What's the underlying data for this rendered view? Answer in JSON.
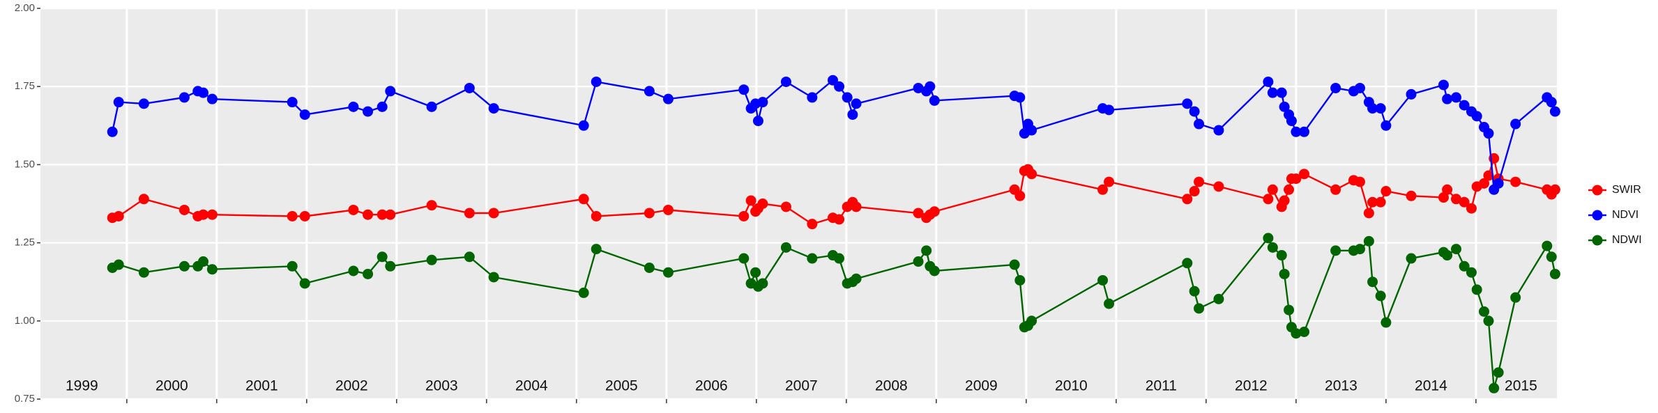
{
  "chart_data": {
    "type": "line",
    "x": [
      1999.84,
      1999.91,
      2000.19,
      2000.64,
      2000.79,
      2000.85,
      2000.95,
      2001.84,
      2001.98,
      2002.52,
      2002.68,
      2002.84,
      2002.93,
      2003.39,
      2003.81,
      2004.08,
      2005.08,
      2005.22,
      2005.81,
      2006.02,
      2006.86,
      2006.94,
      2006.99,
      2007.02,
      2007.07,
      2007.33,
      2007.62,
      2007.85,
      2007.92,
      2008.01,
      2008.07,
      2008.11,
      2008.8,
      2008.89,
      2008.93,
      2008.98,
      2009.87,
      2009.93,
      2009.98,
      2010.02,
      2010.06,
      2010.85,
      2010.92,
      2011.79,
      2011.87,
      2011.92,
      2012.14,
      2012.69,
      2012.74,
      2012.84,
      2012.87,
      2012.92,
      2012.95,
      2013.0,
      2013.09,
      2013.44,
      2013.64,
      2013.71,
      2013.81,
      2013.85,
      2013.94,
      2014.0,
      2014.28,
      2014.64,
      2014.68,
      2014.78,
      2014.87,
      2014.95,
      2015.01,
      2015.09,
      2015.14,
      2015.2,
      2015.25,
      2015.44,
      2015.79,
      2015.84,
      2015.88
    ],
    "series": [
      {
        "name": "SWIR",
        "color": "#ff0000",
        "values": [
          1.33,
          1.335,
          1.39,
          1.355,
          1.335,
          1.34,
          1.34,
          1.335,
          1.335,
          1.355,
          1.34,
          1.34,
          1.34,
          1.37,
          1.345,
          1.345,
          1.39,
          1.335,
          1.345,
          1.355,
          1.335,
          1.385,
          1.35,
          1.36,
          1.375,
          1.365,
          1.31,
          1.33,
          1.325,
          1.365,
          1.38,
          1.365,
          1.345,
          1.33,
          1.34,
          1.35,
          1.42,
          1.4,
          1.48,
          1.485,
          1.47,
          1.42,
          1.445,
          1.39,
          1.415,
          1.445,
          1.43,
          1.39,
          1.42,
          1.365,
          1.385,
          1.42,
          1.455,
          1.455,
          1.47,
          1.42,
          1.45,
          1.445,
          1.345,
          1.38,
          1.38,
          1.415,
          1.4,
          1.395,
          1.42,
          1.39,
          1.38,
          1.36,
          1.43,
          1.44,
          1.465,
          1.52,
          1.455,
          1.445,
          1.42,
          1.405,
          1.42
        ]
      },
      {
        "name": "NDVI",
        "color": "#0000ff",
        "values": [
          1.605,
          1.7,
          1.695,
          1.715,
          1.735,
          1.73,
          1.71,
          1.7,
          1.66,
          1.685,
          1.67,
          1.685,
          1.735,
          1.685,
          1.745,
          1.68,
          1.625,
          1.765,
          1.735,
          1.71,
          1.74,
          1.68,
          1.695,
          1.64,
          1.7,
          1.765,
          1.715,
          1.77,
          1.75,
          1.715,
          1.66,
          1.695,
          1.745,
          1.735,
          1.75,
          1.705,
          1.72,
          1.715,
          1.6,
          1.63,
          1.61,
          1.68,
          1.675,
          1.695,
          1.67,
          1.63,
          1.61,
          1.765,
          1.73,
          1.73,
          1.685,
          1.66,
          1.64,
          1.605,
          1.605,
          1.745,
          1.735,
          1.745,
          1.7,
          1.68,
          1.68,
          1.625,
          1.725,
          1.755,
          1.71,
          1.715,
          1.69,
          1.67,
          1.655,
          1.62,
          1.6,
          1.42,
          1.44,
          1.63,
          1.715,
          1.7,
          1.67
        ]
      },
      {
        "name": "NDWI",
        "color": "#006400",
        "values": [
          1.17,
          1.18,
          1.155,
          1.175,
          1.175,
          1.19,
          1.165,
          1.175,
          1.12,
          1.16,
          1.15,
          1.205,
          1.175,
          1.195,
          1.205,
          1.14,
          1.09,
          1.23,
          1.17,
          1.155,
          1.2,
          1.12,
          1.155,
          1.11,
          1.12,
          1.235,
          1.2,
          1.21,
          1.2,
          1.12,
          1.125,
          1.135,
          1.19,
          1.225,
          1.175,
          1.16,
          1.18,
          1.13,
          0.98,
          0.985,
          1.0,
          1.13,
          1.055,
          1.185,
          1.095,
          1.04,
          1.07,
          1.265,
          1.235,
          1.21,
          1.15,
          1.035,
          0.98,
          0.96,
          0.965,
          1.225,
          1.225,
          1.23,
          1.255,
          1.125,
          1.08,
          0.995,
          1.2,
          1.22,
          1.21,
          1.23,
          1.175,
          1.155,
          1.1,
          1.03,
          1.0,
          0.785,
          0.835,
          1.075,
          1.24,
          1.205,
          1.15
        ]
      }
    ],
    "xlim": [
      1999.04,
      2015.9
    ],
    "xbreaks": [
      2000,
      2001,
      2002,
      2003,
      2004,
      2005,
      2006,
      2007,
      2008,
      2009,
      2010,
      2011,
      2012,
      2013,
      2014,
      2015
    ],
    "xticks": [
      {
        "value": 1999.5,
        "label": "1999"
      },
      {
        "value": 2000.5,
        "label": "2000"
      },
      {
        "value": 2001.5,
        "label": "2001"
      },
      {
        "value": 2002.5,
        "label": "2002"
      },
      {
        "value": 2003.5,
        "label": "2003"
      },
      {
        "value": 2004.5,
        "label": "2004"
      },
      {
        "value": 2005.5,
        "label": "2005"
      },
      {
        "value": 2006.5,
        "label": "2006"
      },
      {
        "value": 2007.5,
        "label": "2007"
      },
      {
        "value": 2008.5,
        "label": "2008"
      },
      {
        "value": 2009.5,
        "label": "2009"
      },
      {
        "value": 2010.5,
        "label": "2010"
      },
      {
        "value": 2011.5,
        "label": "2011"
      },
      {
        "value": 2012.5,
        "label": "2012"
      },
      {
        "value": 2013.5,
        "label": "2013"
      },
      {
        "value": 2014.5,
        "label": "2014"
      },
      {
        "value": 2015.5,
        "label": "2015"
      }
    ],
    "ylim": [
      0.75,
      2.0
    ],
    "yticks": [
      {
        "value": 0.75,
        "label": "0.75"
      },
      {
        "value": 1.0,
        "label": "1.00"
      },
      {
        "value": 1.25,
        "label": "1.25"
      },
      {
        "value": 1.5,
        "label": "1.50"
      },
      {
        "value": 1.75,
        "label": "1.75"
      },
      {
        "value": 2.0,
        "label": "2.00"
      }
    ],
    "grid": true,
    "legend": "right"
  }
}
